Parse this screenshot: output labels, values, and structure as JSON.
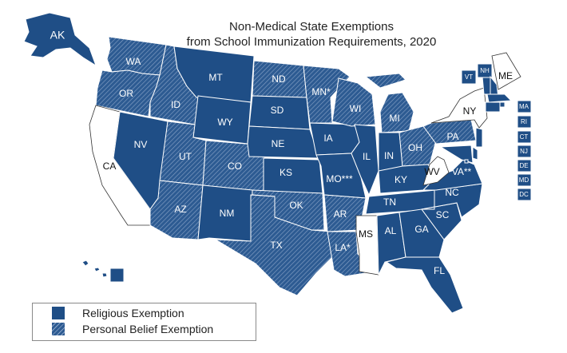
{
  "title": {
    "line1": "Non-Medical State Exemptions",
    "line2": "from School Immunization Requirements, 2020"
  },
  "legend": {
    "religious": "Religious Exemption",
    "personal": "Personal Belief Exemption"
  },
  "colors": {
    "religious": "#1f4e86",
    "personal": "#2d5b92",
    "hatch_line": "#8aa4c8",
    "none": "#ffffff",
    "border": "#ffffff"
  },
  "states": [
    {
      "abbr": "AK",
      "label": "AK",
      "exemption": "religious"
    },
    {
      "abbr": "HI",
      "label": "HI",
      "exemption": "religious"
    },
    {
      "abbr": "WA",
      "label": "WA",
      "exemption": "personal"
    },
    {
      "abbr": "OR",
      "label": "OR",
      "exemption": "personal"
    },
    {
      "abbr": "CA",
      "label": "CA",
      "exemption": "none"
    },
    {
      "abbr": "NV",
      "label": "NV",
      "exemption": "religious"
    },
    {
      "abbr": "ID",
      "label": "ID",
      "exemption": "personal"
    },
    {
      "abbr": "MT",
      "label": "MT",
      "exemption": "religious"
    },
    {
      "abbr": "WY",
      "label": "WY",
      "exemption": "religious"
    },
    {
      "abbr": "UT",
      "label": "UT",
      "exemption": "personal"
    },
    {
      "abbr": "CO",
      "label": "CO",
      "exemption": "personal"
    },
    {
      "abbr": "AZ",
      "label": "AZ",
      "exemption": "personal"
    },
    {
      "abbr": "NM",
      "label": "NM",
      "exemption": "religious"
    },
    {
      "abbr": "ND",
      "label": "ND",
      "exemption": "personal"
    },
    {
      "abbr": "SD",
      "label": "SD",
      "exemption": "religious"
    },
    {
      "abbr": "NE",
      "label": "NE",
      "exemption": "religious"
    },
    {
      "abbr": "KS",
      "label": "KS",
      "exemption": "religious"
    },
    {
      "abbr": "OK",
      "label": "OK",
      "exemption": "personal"
    },
    {
      "abbr": "TX",
      "label": "TX",
      "exemption": "personal"
    },
    {
      "abbr": "MN",
      "label": "MN*",
      "exemption": "personal"
    },
    {
      "abbr": "IA",
      "label": "IA",
      "exemption": "religious"
    },
    {
      "abbr": "MO",
      "label": "MO***",
      "exemption": "religious"
    },
    {
      "abbr": "AR",
      "label": "AR",
      "exemption": "personal"
    },
    {
      "abbr": "LA",
      "label": "LA*",
      "exemption": "personal"
    },
    {
      "abbr": "WI",
      "label": "WI",
      "exemption": "personal"
    },
    {
      "abbr": "IL",
      "label": "IL",
      "exemption": "religious"
    },
    {
      "abbr": "MI",
      "label": "MI",
      "exemption": "personal"
    },
    {
      "abbr": "IN",
      "label": "IN",
      "exemption": "religious"
    },
    {
      "abbr": "OH",
      "label": "OH",
      "exemption": "personal"
    },
    {
      "abbr": "KY",
      "label": "KY",
      "exemption": "religious"
    },
    {
      "abbr": "TN",
      "label": "TN",
      "exemption": "religious"
    },
    {
      "abbr": "MS",
      "label": "MS",
      "exemption": "none"
    },
    {
      "abbr": "AL",
      "label": "AL",
      "exemption": "religious"
    },
    {
      "abbr": "GA",
      "label": "GA",
      "exemption": "religious"
    },
    {
      "abbr": "FL",
      "label": "FL",
      "exemption": "religious"
    },
    {
      "abbr": "SC",
      "label": "SC",
      "exemption": "religious"
    },
    {
      "abbr": "NC",
      "label": "NC",
      "exemption": "religious"
    },
    {
      "abbr": "VA",
      "label": "VA**",
      "exemption": "religious"
    },
    {
      "abbr": "WV",
      "label": "WV",
      "exemption": "none"
    },
    {
      "abbr": "PA",
      "label": "PA",
      "exemption": "personal"
    },
    {
      "abbr": "NY",
      "label": "NY",
      "exemption": "none"
    },
    {
      "abbr": "ME",
      "label": "ME",
      "exemption": "none"
    },
    {
      "abbr": "VT",
      "label": "VT",
      "exemption": "religious"
    },
    {
      "abbr": "NH",
      "label": "NH",
      "exemption": "religious"
    },
    {
      "abbr": "MA",
      "label": "MA",
      "exemption": "religious"
    },
    {
      "abbr": "RI",
      "label": "RI",
      "exemption": "religious"
    },
    {
      "abbr": "CT",
      "label": "CT",
      "exemption": "religious"
    },
    {
      "abbr": "NJ",
      "label": "NJ",
      "exemption": "religious"
    },
    {
      "abbr": "DE",
      "label": "DE",
      "exemption": "religious"
    },
    {
      "abbr": "MD",
      "label": "MD",
      "exemption": "religious"
    },
    {
      "abbr": "DC",
      "label": "DC",
      "exemption": "religious"
    }
  ]
}
